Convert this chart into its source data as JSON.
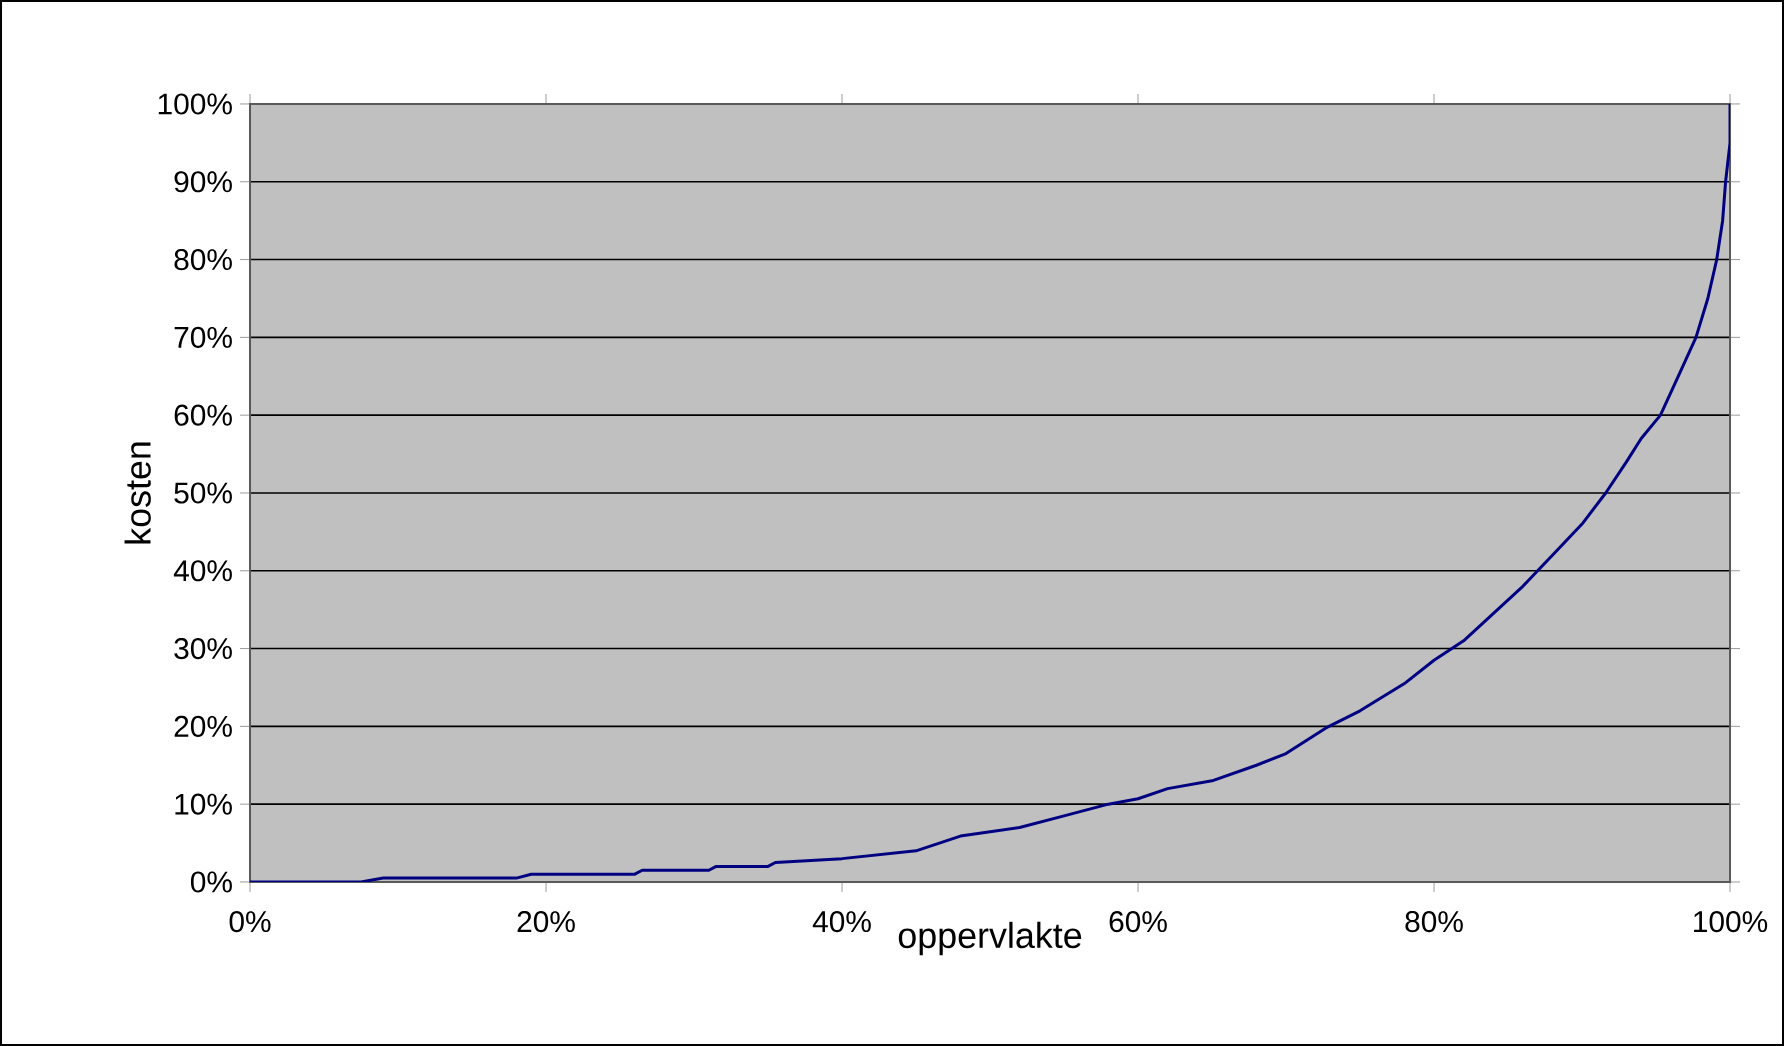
{
  "chart_data": {
    "type": "line",
    "xlabel": "oppervlakte",
    "ylabel": "kosten",
    "x": [
      0,
      7.5,
      9,
      18,
      19,
      26,
      26.5,
      31,
      31.5,
      35,
      35.5,
      40,
      45,
      48,
      52,
      55,
      58,
      60,
      62,
      65,
      68,
      70,
      72.7,
      75,
      78,
      80,
      82,
      84,
      86,
      87,
      88,
      90,
      91.6,
      93,
      94,
      95.3,
      96.5,
      97.7,
      98.5,
      99.1,
      99.5,
      99.7,
      100,
      100
    ],
    "series": [
      {
        "color": "#000080",
        "values": [
          0,
          0,
          0.5,
          0.5,
          1,
          1,
          1.5,
          1.5,
          2,
          2,
          2.5,
          3,
          4,
          5.9,
          7,
          8.5,
          10,
          10.7,
          12,
          13,
          15,
          16.5,
          19.8,
          22,
          25.5,
          28.5,
          31,
          34.5,
          38,
          40,
          42,
          46,
          50,
          54,
          57,
          60,
          65,
          70,
          75,
          80,
          85,
          90,
          95,
          100
        ]
      }
    ],
    "xlim": [
      0,
      100
    ],
    "ylim": [
      0,
      100
    ],
    "xticks": [
      {
        "value": 0,
        "label": "0%"
      },
      {
        "value": 20,
        "label": "20%"
      },
      {
        "value": 40,
        "label": "40%"
      },
      {
        "value": 60,
        "label": "60%"
      },
      {
        "value": 80,
        "label": "80%"
      },
      {
        "value": 100,
        "label": "100%"
      }
    ],
    "yticks": [
      {
        "value": 0,
        "label": "0%"
      },
      {
        "value": 10,
        "label": "10%"
      },
      {
        "value": 20,
        "label": "20%"
      },
      {
        "value": 30,
        "label": "30%"
      },
      {
        "value": 40,
        "label": "40%"
      },
      {
        "value": 50,
        "label": "50%"
      },
      {
        "value": 60,
        "label": "60%"
      },
      {
        "value": 70,
        "label": "70%"
      },
      {
        "value": 80,
        "label": "80%"
      },
      {
        "value": 90,
        "label": "90%"
      },
      {
        "value": 100,
        "label": "100%"
      }
    ],
    "grid": "y",
    "marker": "none",
    "line_style": "solid"
  }
}
